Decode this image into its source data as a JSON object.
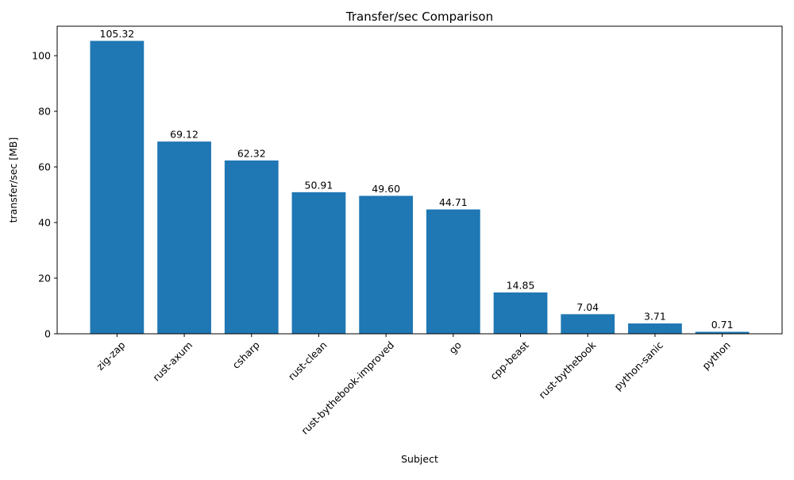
{
  "chart_data": {
    "type": "bar",
    "title": "Transfer/sec Comparison",
    "xlabel": "Subject",
    "ylabel": "transfer/sec [MB]",
    "categories": [
      "zig-zap",
      "rust-axum",
      "csharp",
      "rust-clean",
      "rust-bythebook-improved",
      "go",
      "cpp-beast",
      "rust-bythebook",
      "python-sanic",
      "python"
    ],
    "values": [
      105.32,
      69.12,
      62.32,
      50.91,
      49.6,
      44.71,
      14.85,
      7.04,
      3.71,
      0.71
    ],
    "value_labels": [
      "105.32",
      "69.12",
      "62.32",
      "50.91",
      "49.60",
      "44.71",
      "14.85",
      "7.04",
      "3.71",
      "0.71"
    ],
    "yticks": [
      0,
      20,
      40,
      60,
      80,
      100
    ],
    "ytick_labels": [
      "0",
      "20",
      "40",
      "60",
      "80",
      "100"
    ],
    "ylim": [
      0,
      110.59
    ],
    "bar_color": "#1f77b4",
    "axis_color": "#000000",
    "grid": false,
    "legend": null,
    "xtick_rotation_deg": 45,
    "bar_width_fraction": 0.8
  }
}
